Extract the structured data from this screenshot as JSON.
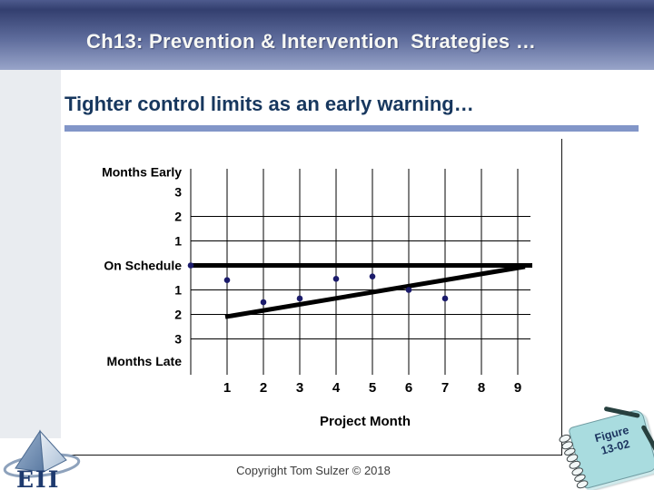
{
  "header": {
    "title": "Ch13: Prevention & Intervention  Strategies …"
  },
  "body": {
    "subtitle": "Tighter control limits as an early warning…"
  },
  "footer": {
    "copyright": "Copyright Tom Sulzer © 2018"
  },
  "figure_tag": {
    "line1": "Figure",
    "line2": "13-02"
  },
  "logo": {
    "text": "EII"
  },
  "colors": {
    "header_gradient_top": "#333f6f",
    "header_gradient_bottom": "#98a4c9",
    "subtitle_text": "#17375e",
    "underline_bar": "#8296c8",
    "sidebar": "#e9ecf0",
    "data_point": "#1b1b6b",
    "chart_line": "#000000",
    "notebook": "#a9dcdf"
  },
  "chart_data": {
    "type": "scatter",
    "title": "",
    "xlabel": "Project Month",
    "ylabel": "",
    "x_ticks": [
      1,
      2,
      3,
      4,
      5,
      6,
      7,
      8,
      9
    ],
    "xlim": [
      0,
      9.4
    ],
    "ylim": [
      -3,
      3
    ],
    "grid": true,
    "gridlines_y": [
      2,
      1,
      -1,
      -2,
      -3
    ],
    "y_axis_rows": [
      {
        "text": "Months Early",
        "v": 3.82
      },
      {
        "text": "3",
        "v": 3
      },
      {
        "text": "2",
        "v": 2
      },
      {
        "text": "1",
        "v": 1
      },
      {
        "text": "On Schedule",
        "v": 0
      },
      {
        "text": "1",
        "v": -1
      },
      {
        "text": "2",
        "v": -2
      },
      {
        "text": "3",
        "v": -3
      },
      {
        "text": "Months Late",
        "v": -3.9
      }
    ],
    "points": [
      {
        "x": 0,
        "y": 0
      },
      {
        "x": 1,
        "y": -0.6
      },
      {
        "x": 2,
        "y": -1.5
      },
      {
        "x": 3,
        "y": -1.35
      },
      {
        "x": 4,
        "y": -0.55
      },
      {
        "x": 5,
        "y": -0.45
      },
      {
        "x": 6,
        "y": -1.0
      },
      {
        "x": 7,
        "y": -1.35
      }
    ],
    "lines": [
      {
        "name": "on-schedule-line",
        "x1": 0,
        "y1": 0,
        "x2": 9.4,
        "y2": 0
      },
      {
        "name": "tighter-control-limit-line",
        "x1": 0.95,
        "y1": -2.1,
        "x2": 9.2,
        "y2": -0.05
      }
    ],
    "point_color": "#1b1b6b",
    "line_color": "#000000"
  }
}
